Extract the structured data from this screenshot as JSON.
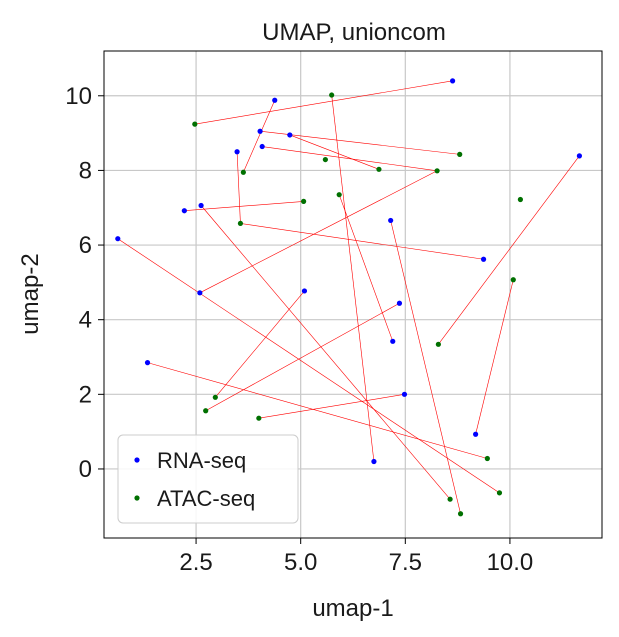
{
  "chart_data": {
    "type": "scatter",
    "title": "UMAP, unioncom",
    "xlabel": "umap-1",
    "ylabel": "umap-2",
    "xlim": [
      0.3,
      12.2
    ],
    "ylim": [
      -1.85,
      11.2
    ],
    "xticks": [
      2.5,
      5.0,
      7.5,
      10.0
    ],
    "xtick_labels": [
      "2.5",
      "5.0",
      "7.5",
      "10.0"
    ],
    "yticks": [
      0,
      2,
      4,
      6,
      8,
      10
    ],
    "ytick_labels": [
      "0",
      "2",
      "4",
      "6",
      "8",
      "10"
    ],
    "grid": true,
    "legend_position": "lower-left",
    "series": [
      {
        "name": "RNA-seq",
        "color": "#0000ff",
        "x": [
          8.63,
          4.38,
          4.03,
          4.74,
          4.08,
          3.48,
          2.22,
          2.62,
          0.63,
          7.15,
          9.37,
          2.59,
          5.09,
          7.36,
          7.2,
          1.34,
          7.48,
          9.18,
          6.75,
          11.66
        ],
        "y": [
          10.4,
          9.88,
          9.05,
          8.95,
          8.64,
          8.5,
          6.92,
          7.06,
          6.17,
          6.66,
          5.62,
          4.72,
          4.77,
          4.44,
          3.42,
          2.85,
          2.0,
          0.93,
          0.2,
          8.39
        ]
      },
      {
        "name": "ATAC-seq",
        "color": "#007000",
        "x": [
          5.74,
          2.47,
          8.8,
          3.63,
          5.59,
          6.87,
          8.26,
          5.92,
          5.07,
          10.25,
          3.56,
          10.08,
          8.29,
          2.96,
          2.73,
          4.0,
          9.46,
          9.75,
          8.57,
          8.82
        ],
        "y": [
          10.02,
          9.24,
          8.43,
          7.95,
          8.29,
          8.03,
          7.99,
          7.35,
          7.17,
          7.22,
          6.58,
          5.07,
          3.34,
          1.92,
          1.56,
          1.36,
          0.28,
          -0.64,
          -0.81,
          -1.2
        ]
      }
    ],
    "links": {
      "color": "#ff0000",
      "pairs": [
        [
          0,
          1
        ],
        [
          1,
          3
        ],
        [
          2,
          2
        ],
        [
          3,
          5
        ],
        [
          4,
          6
        ],
        [
          5,
          10
        ],
        [
          6,
          8
        ],
        [
          7,
          18
        ],
        [
          8,
          17
        ],
        [
          9,
          19
        ],
        [
          10,
          10
        ],
        [
          11,
          6
        ],
        [
          12,
          13
        ],
        [
          13,
          14
        ],
        [
          14,
          7
        ],
        [
          15,
          16
        ],
        [
          16,
          15
        ],
        [
          17,
          11
        ],
        [
          18,
          0
        ],
        [
          19,
          12
        ]
      ]
    }
  }
}
